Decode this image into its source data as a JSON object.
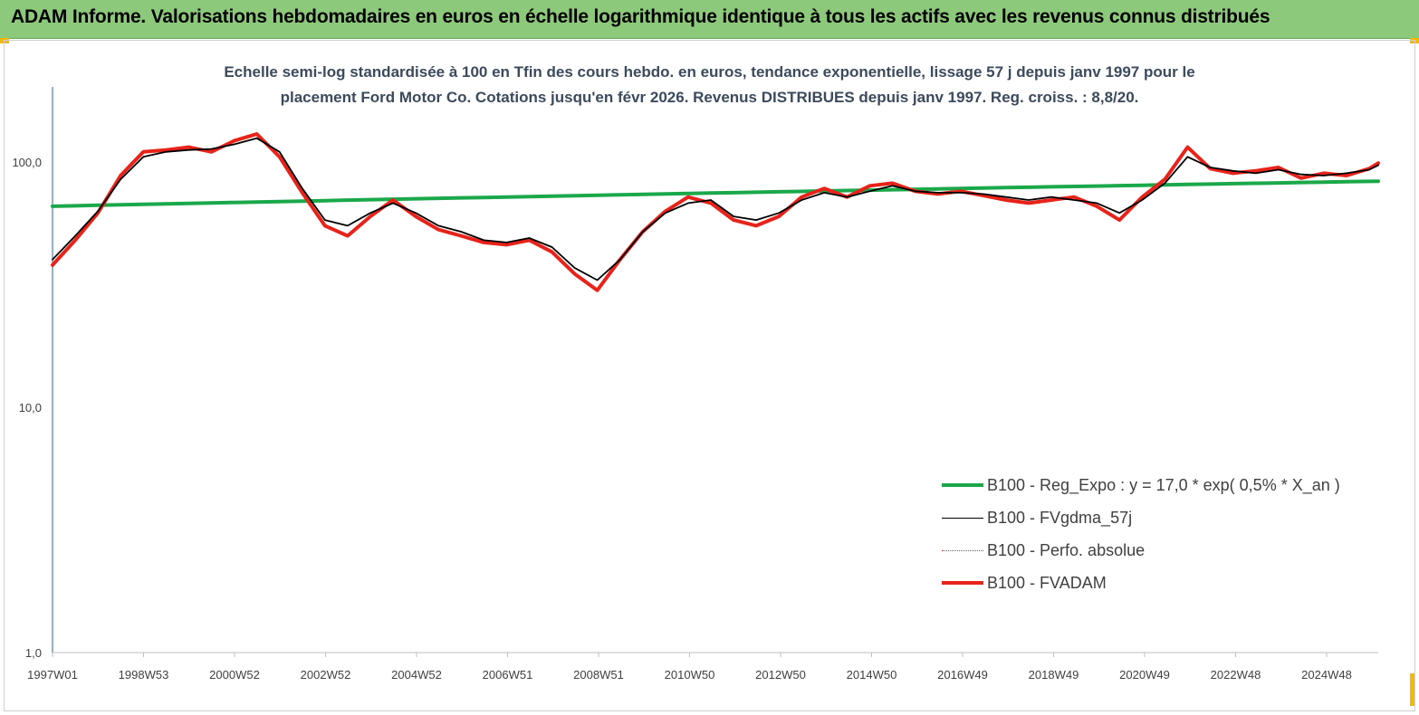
{
  "header": {
    "title": "ADAM Informe. Valorisations hebdomadaires en euros en échelle logarithmique identique à tous les actifs avec les revenus connus distribués",
    "background": "#8cc97a"
  },
  "chart_data": {
    "type": "line",
    "title": "Echelle semi-log standardisée à 100 en Tfin des cours hebdo. en euros, tendance exponentielle, lissage 57 j depuis janv 1997 pour le",
    "subtitle": "placement Ford Motor Co. Cotations jusqu'en févr 2026. Revenus DISTRIBUES depuis janv 1997. Reg. croiss. : 8,8/20.",
    "xlabel": "",
    "ylabel": "",
    "y_scale": "log",
    "ylim": [
      1,
      200
    ],
    "y_ticks": [
      "1,0",
      "10,0",
      "100,0"
    ],
    "x_tick_labels": [
      "1997W01",
      "1998W53",
      "2000W52",
      "2002W52",
      "2004W52",
      "2006W51",
      "2008W51",
      "2010W50",
      "2012W50",
      "2014W50",
      "2016W49",
      "2018W49",
      "2020W49",
      "2022W48",
      "2024W48"
    ],
    "xlim": [
      1997.0,
      2026.2
    ],
    "grid": false,
    "legend_position": "bottom-right",
    "x": [
      1997.0,
      1997.5,
      1998.0,
      1998.5,
      1999.0,
      1999.5,
      2000.0,
      2000.5,
      2001.0,
      2001.5,
      2002.0,
      2002.5,
      2003.0,
      2003.5,
      2004.0,
      2004.5,
      2005.0,
      2005.5,
      2006.0,
      2006.5,
      2007.0,
      2007.5,
      2008.0,
      2008.5,
      2009.0,
      2009.5,
      2010.0,
      2010.5,
      2011.0,
      2011.5,
      2012.0,
      2012.5,
      2013.0,
      2013.5,
      2014.0,
      2014.5,
      2015.0,
      2015.5,
      2016.0,
      2016.5,
      2017.0,
      2017.5,
      2018.0,
      2018.5,
      2019.0,
      2019.5,
      2020.0,
      2020.5,
      2021.0,
      2021.5,
      2022.0,
      2022.5,
      2023.0,
      2023.5,
      2024.0,
      2024.5,
      2025.0,
      2025.5,
      2026.0,
      2026.2
    ],
    "series": [
      {
        "name": "B100 - Reg_Expo : y = 17,0 *  exp( 0,5% *   X_an )",
        "color": "#1aa84a",
        "style": "thick",
        "values": [
          66,
          66.3,
          66.6,
          66.9,
          67.2,
          67.5,
          67.8,
          68.1,
          68.4,
          68.7,
          69,
          69.3,
          69.6,
          69.9,
          70.2,
          70.5,
          70.8,
          71.1,
          71.4,
          71.7,
          72,
          72.3,
          72.6,
          72.9,
          73.2,
          73.5,
          73.8,
          74.1,
          74.4,
          74.7,
          75,
          75.3,
          75.6,
          75.9,
          76.2,
          76.5,
          76.8,
          77.1,
          77.4,
          77.7,
          78,
          78.3,
          78.6,
          78.9,
          79.2,
          79.5,
          79.8,
          80.1,
          80.4,
          80.7,
          81,
          81.3,
          81.6,
          81.9,
          82.2,
          82.5,
          82.8,
          83.1,
          83.4,
          83.5
        ]
      },
      {
        "name": "B100 - FVgdma_57j",
        "color": "#000000",
        "style": "thin",
        "values": [
          40,
          50,
          63,
          85,
          105,
          110,
          112,
          113,
          118,
          125,
          110,
          78,
          58,
          55,
          62,
          68,
          62,
          55,
          52,
          48,
          47,
          49,
          45,
          37,
          33,
          40,
          52,
          62,
          68,
          70,
          60,
          58,
          62,
          70,
          75,
          72,
          76,
          80,
          76,
          75,
          75,
          74,
          72,
          70,
          72,
          70,
          68,
          62,
          70,
          82,
          105,
          95,
          92,
          90,
          93,
          89,
          88,
          90,
          93,
          97
        ]
      },
      {
        "name": "B100 - Perfo. absolue",
        "color": "#e8231a",
        "style": "dotted",
        "values": [
          38,
          48,
          62,
          88,
          110,
          112,
          115,
          110,
          122,
          130,
          105,
          75,
          55,
          50,
          60,
          70,
          60,
          53,
          50,
          47,
          46,
          48,
          43,
          35,
          30,
          40,
          52,
          63,
          72,
          68,
          58,
          55,
          60,
          72,
          78,
          72,
          80,
          82,
          76,
          74,
          76,
          73,
          70,
          68,
          70,
          72,
          66,
          58,
          72,
          85,
          115,
          94,
          90,
          92,
          95,
          86,
          90,
          88,
          94,
          99
        ]
      },
      {
        "name": "B100 - FVADAM",
        "color": "#e8231a",
        "style": "thick",
        "values": [
          38,
          48,
          62,
          88,
          110,
          112,
          115,
          110,
          122,
          130,
          105,
          75,
          55,
          50,
          60,
          70,
          60,
          53,
          50,
          47,
          46,
          48,
          43,
          35,
          30,
          40,
          52,
          63,
          72,
          68,
          58,
          55,
          60,
          72,
          78,
          72,
          80,
          82,
          76,
          74,
          76,
          73,
          70,
          68,
          70,
          72,
          66,
          58,
          72,
          85,
          115,
          94,
          90,
          92,
          95,
          86,
          90,
          88,
          94,
          99
        ]
      }
    ]
  }
}
